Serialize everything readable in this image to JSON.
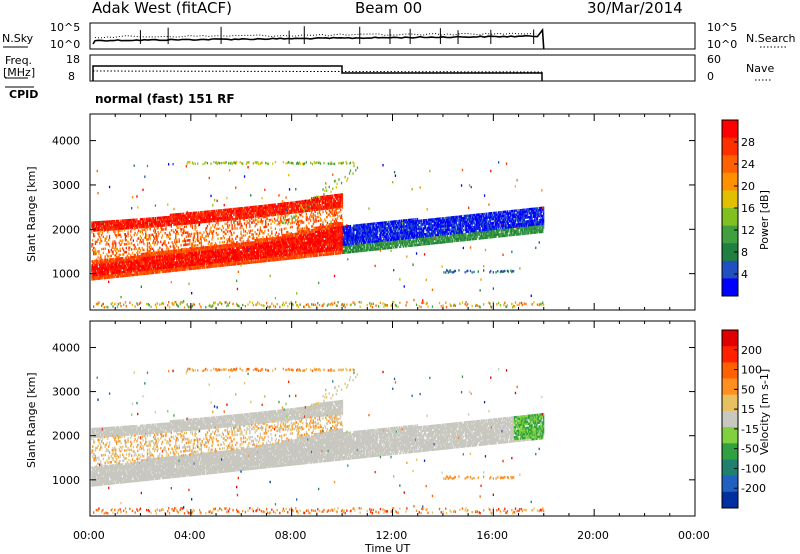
{
  "header": {
    "station": "Adak West (fitACF)",
    "beam": "Beam 00",
    "date": "30/Mar/2014"
  },
  "panels": {
    "nsky_label": "N.Sky",
    "nsearch_label": "N.Search",
    "nsky_ticks": [
      "10^5",
      "10^0"
    ],
    "nsky_right_ticks": [
      "10^5",
      "10^0"
    ],
    "freq_label": "Freq.",
    "freq_unit": "[MHz]",
    "freq_ticks": [
      "18",
      "8"
    ],
    "nave_ticks": [
      "60",
      "0"
    ],
    "nave_label": "Nave",
    "cpid_label": "CPID",
    "cpid_value": "normal (fast) 151 RF"
  },
  "colors": {
    "power": [
      "#0000ff",
      "#2050c0",
      "#208040",
      "#40a040",
      "#80c020",
      "#e0c000",
      "#ff9000",
      "#ff6000",
      "#ff3000",
      "#ff0000"
    ],
    "velocity": [
      "#0030a0",
      "#2060c0",
      "#208070",
      "#30a040",
      "#80d040",
      "#c8c8c0",
      "#e8c060",
      "#ff9020",
      "#ff6000",
      "#ff2000",
      "#e00000"
    ]
  },
  "chart_data": [
    {
      "type": "heatmap",
      "panel": "power",
      "ylabel": "Slant Range [km]",
      "yticks": [
        "1000",
        "2000",
        "3000",
        "4000"
      ],
      "xlim": [
        0,
        24
      ],
      "ylim": [
        180,
        4600
      ],
      "colorbar_label": "Power [dB]",
      "colorbar_ticks": [
        "4",
        "8",
        "12",
        "16",
        "20",
        "24",
        "28"
      ]
    },
    {
      "type": "heatmap",
      "panel": "velocity",
      "xlabel": "Time UT",
      "ylabel": "Slant Range [km]",
      "xticks": [
        "00:00",
        "04:00",
        "08:00",
        "12:00",
        "16:00",
        "20:00",
        "00:00"
      ],
      "yticks": [
        "1000",
        "2000",
        "3000",
        "4000"
      ],
      "xlim": [
        0,
        24
      ],
      "ylim": [
        180,
        4600
      ],
      "colorbar_label": "Velocity [m s-1]",
      "colorbar_ticks": [
        "200",
        "100",
        "50",
        "15",
        "-15",
        "-50",
        "-100",
        "-200"
      ]
    }
  ]
}
